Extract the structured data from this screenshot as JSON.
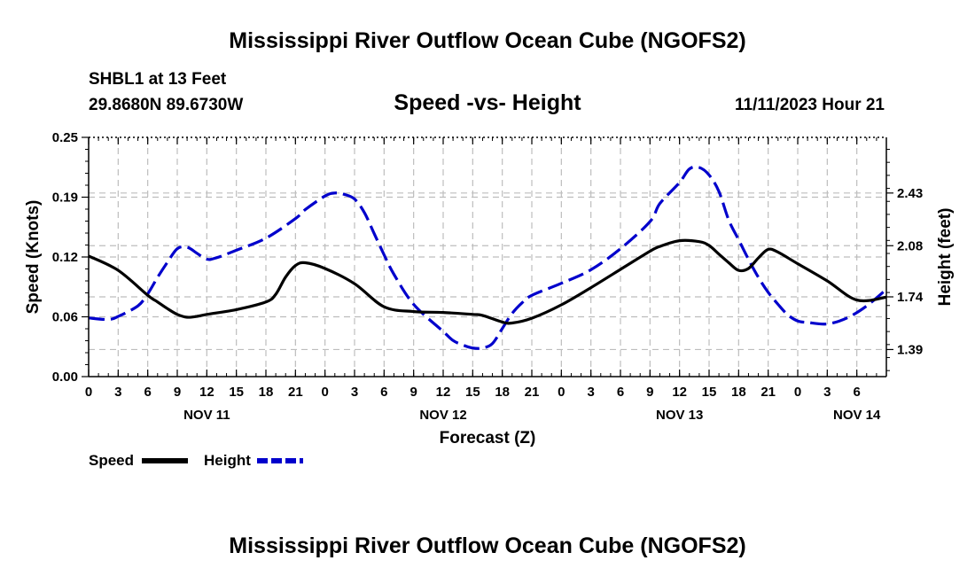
{
  "header": {
    "title": "Mississippi River Outflow Ocean Cube (NGOFS2)",
    "station": "SHBL1 at 13 Feet",
    "coords": "29.8680N  89.6730W",
    "subtitle": "Speed -vs- Height",
    "datetime": "11/11/2023 Hour 21",
    "footer_title": "Mississippi River Outflow Ocean Cube (NGOFS2)"
  },
  "chart_data": {
    "type": "line",
    "title": "Speed -vs- Height",
    "xlabel": "Forecast (Z)",
    "ylabel_left": "Speed (Knots)",
    "ylabel_right": "Height (feet)",
    "x_range_hours": [
      0,
      81
    ],
    "x_ticks": [
      {
        "hour": 0,
        "label": "0"
      },
      {
        "hour": 3,
        "label": "3"
      },
      {
        "hour": 6,
        "label": "6"
      },
      {
        "hour": 9,
        "label": "9"
      },
      {
        "hour": 12,
        "label": "12"
      },
      {
        "hour": 15,
        "label": "15"
      },
      {
        "hour": 18,
        "label": "18"
      },
      {
        "hour": 21,
        "label": "21"
      },
      {
        "hour": 24,
        "label": "0"
      },
      {
        "hour": 27,
        "label": "3"
      },
      {
        "hour": 30,
        "label": "6"
      },
      {
        "hour": 33,
        "label": "9"
      },
      {
        "hour": 36,
        "label": "12"
      },
      {
        "hour": 39,
        "label": "15"
      },
      {
        "hour": 42,
        "label": "18"
      },
      {
        "hour": 45,
        "label": "21"
      },
      {
        "hour": 48,
        "label": "0"
      },
      {
        "hour": 51,
        "label": "3"
      },
      {
        "hour": 54,
        "label": "6"
      },
      {
        "hour": 57,
        "label": "9"
      },
      {
        "hour": 60,
        "label": "12"
      },
      {
        "hour": 63,
        "label": "15"
      },
      {
        "hour": 66,
        "label": "18"
      },
      {
        "hour": 69,
        "label": "21"
      },
      {
        "hour": 72,
        "label": "0"
      },
      {
        "hour": 75,
        "label": "3"
      },
      {
        "hour": 78,
        "label": "6"
      }
    ],
    "day_labels": [
      {
        "hour": 12,
        "label": "NOV 11"
      },
      {
        "hour": 36,
        "label": "NOV 12"
      },
      {
        "hour": 60,
        "label": "NOV 13"
      },
      {
        "hour": 78,
        "label": "NOV 14"
      }
    ],
    "y_left": {
      "range": [
        0,
        0.25
      ],
      "ticks": [
        {
          "value": 0.0,
          "label": "0.00"
        },
        {
          "value": 0.0625,
          "label": "0.06"
        },
        {
          "value": 0.125,
          "label": "0.12"
        },
        {
          "value": 0.1875,
          "label": "0.19"
        },
        {
          "value": 0.25,
          "label": "0.25"
        }
      ]
    },
    "y_right": {
      "range": [
        1.21,
        2.8
      ],
      "ticks": [
        {
          "value": 1.39,
          "label": "1.39"
        },
        {
          "value": 1.74,
          "label": "1.74"
        },
        {
          "value": 2.08,
          "label": "2.08"
        },
        {
          "value": 2.43,
          "label": "2.43"
        }
      ]
    },
    "series": [
      {
        "name": "Speed",
        "axis": "left",
        "color": "#000000",
        "dash": "solid",
        "points": [
          [
            0,
            0.126
          ],
          [
            3,
            0.111
          ],
          [
            6,
            0.085
          ],
          [
            7,
            0.078
          ],
          [
            8,
            0.071
          ],
          [
            9,
            0.065
          ],
          [
            10,
            0.062
          ],
          [
            11,
            0.063
          ],
          [
            12,
            0.065
          ],
          [
            15,
            0.07
          ],
          [
            18,
            0.078
          ],
          [
            19,
            0.086
          ],
          [
            20,
            0.104
          ],
          [
            21,
            0.116
          ],
          [
            22,
            0.119
          ],
          [
            24,
            0.113
          ],
          [
            27,
            0.097
          ],
          [
            30,
            0.073
          ],
          [
            33,
            0.068
          ],
          [
            36,
            0.067
          ],
          [
            39,
            0.065
          ],
          [
            40,
            0.064
          ],
          [
            42,
            0.057
          ],
          [
            43,
            0.056
          ],
          [
            45,
            0.061
          ],
          [
            48,
            0.075
          ],
          [
            51,
            0.093
          ],
          [
            54,
            0.112
          ],
          [
            57,
            0.131
          ],
          [
            58,
            0.136
          ],
          [
            60,
            0.142
          ],
          [
            62,
            0.141
          ],
          [
            63,
            0.137
          ],
          [
            64,
            0.128
          ],
          [
            65,
            0.119
          ],
          [
            66,
            0.111
          ],
          [
            67,
            0.113
          ],
          [
            68,
            0.124
          ],
          [
            69,
            0.133
          ],
          [
            70,
            0.13
          ],
          [
            72,
            0.118
          ],
          [
            75,
            0.1
          ],
          [
            78,
            0.08
          ],
          [
            81,
            0.083
          ]
        ]
      },
      {
        "name": "Height",
        "axis": "right",
        "color": "#0000cc",
        "dash": "dashed",
        "points": [
          [
            0,
            1.6
          ],
          [
            2,
            1.59
          ],
          [
            3,
            1.61
          ],
          [
            5,
            1.68
          ],
          [
            6,
            1.76
          ],
          [
            7,
            1.87
          ],
          [
            8,
            1.97
          ],
          [
            9,
            2.06
          ],
          [
            10,
            2.07
          ],
          [
            11,
            2.03
          ],
          [
            12,
            1.99
          ],
          [
            13,
            2.0
          ],
          [
            15,
            2.05
          ],
          [
            18,
            2.13
          ],
          [
            21,
            2.26
          ],
          [
            22,
            2.32
          ],
          [
            24,
            2.41
          ],
          [
            25,
            2.43
          ],
          [
            26,
            2.42
          ],
          [
            27,
            2.39
          ],
          [
            28,
            2.3
          ],
          [
            29,
            2.16
          ],
          [
            30,
            2.02
          ],
          [
            31,
            1.89
          ],
          [
            33,
            1.69
          ],
          [
            36,
            1.51
          ],
          [
            37,
            1.45
          ],
          [
            38,
            1.42
          ],
          [
            39,
            1.4
          ],
          [
            40,
            1.4
          ],
          [
            41,
            1.43
          ],
          [
            42,
            1.53
          ],
          [
            43,
            1.63
          ],
          [
            44,
            1.7
          ],
          [
            45,
            1.75
          ],
          [
            48,
            1.83
          ],
          [
            51,
            1.92
          ],
          [
            54,
            2.06
          ],
          [
            57,
            2.24
          ],
          [
            58,
            2.36
          ],
          [
            60,
            2.5
          ],
          [
            61,
            2.59
          ],
          [
            62,
            2.6
          ],
          [
            63,
            2.55
          ],
          [
            64,
            2.44
          ],
          [
            65,
            2.25
          ],
          [
            66,
            2.12
          ],
          [
            67,
            1.99
          ],
          [
            68,
            1.87
          ],
          [
            69,
            1.77
          ],
          [
            70,
            1.69
          ],
          [
            71,
            1.62
          ],
          [
            72,
            1.58
          ],
          [
            73,
            1.57
          ],
          [
            75,
            1.56
          ],
          [
            77,
            1.6
          ],
          [
            79,
            1.68
          ],
          [
            81,
            1.79
          ]
        ]
      }
    ],
    "legend": [
      {
        "name": "Speed",
        "color": "#000000",
        "dash": "solid"
      },
      {
        "name": "Height",
        "color": "#0000cc",
        "dash": "dashed"
      }
    ]
  }
}
